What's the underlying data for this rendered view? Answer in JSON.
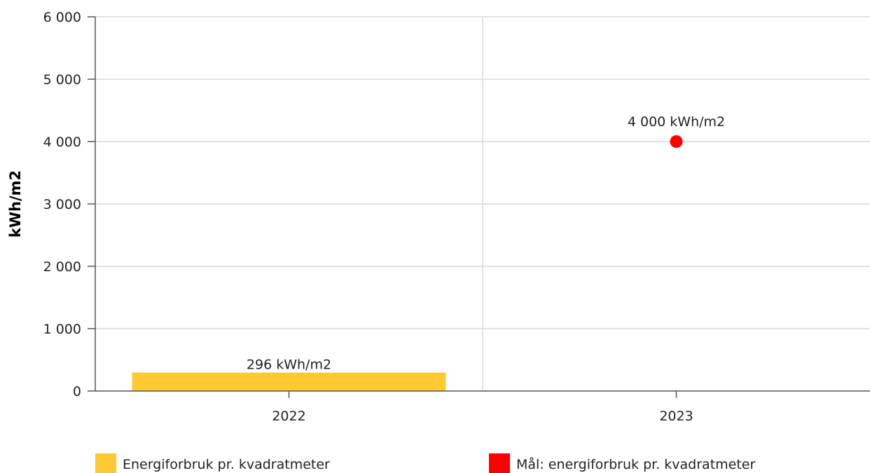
{
  "chart_data": {
    "type": "bar",
    "categories": [
      "2022",
      "2023"
    ],
    "ylabel": "kWh/m2",
    "ylim": [
      0,
      6000
    ],
    "yticks": [
      0,
      1000,
      2000,
      3000,
      4000,
      5000,
      6000
    ],
    "ytick_labels": [
      "0",
      "1 000",
      "2 000",
      "3 000",
      "4 000",
      "5 000",
      "6 000"
    ],
    "grid": true,
    "legend_placement": "bottom",
    "series": [
      {
        "name": "Energiforbruk pr. kvadratmeter",
        "kind": "bar",
        "color": "#FFC933",
        "values": [
          296,
          null
        ],
        "data_labels": [
          "296 kWh/m2",
          null
        ]
      },
      {
        "name": "Mål: energiforbruk pr. kvadratmeter",
        "kind": "point",
        "color": "#FF0000",
        "values": [
          null,
          4000
        ],
        "data_labels": [
          null,
          "4 000 kWh/m2"
        ]
      }
    ]
  }
}
